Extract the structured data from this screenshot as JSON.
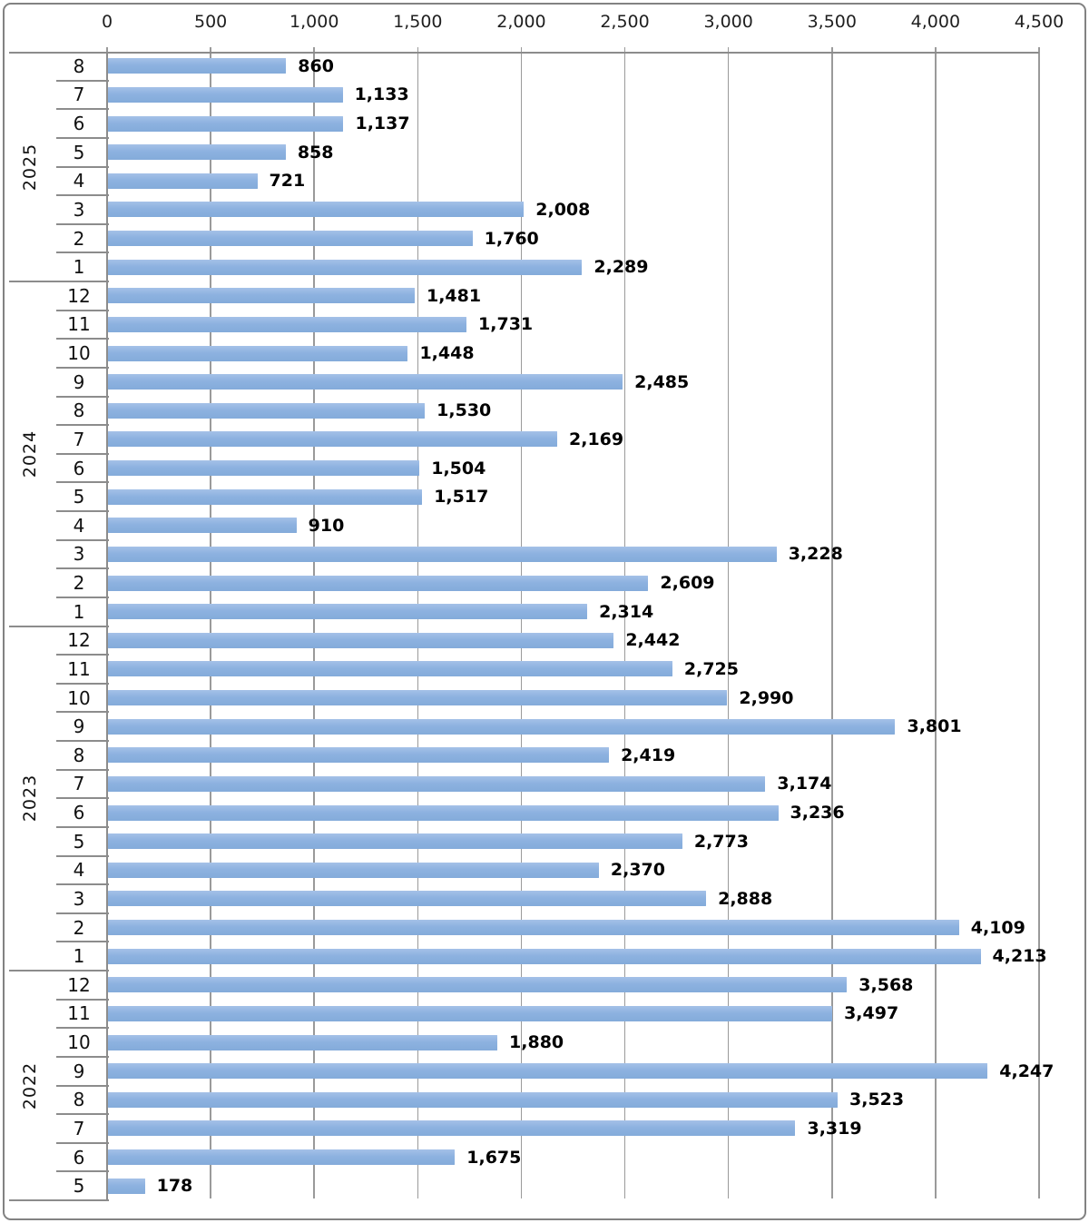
{
  "chart_data": {
    "type": "bar",
    "orientation": "horizontal",
    "title": "",
    "xlabel": "",
    "ylabel": "",
    "xlim": [
      0,
      4500
    ],
    "x_ticks": [
      0,
      500,
      1000,
      1500,
      2000,
      2500,
      3000,
      3500,
      4000,
      4500
    ],
    "x_tick_labels": [
      "0",
      "500",
      "1,000",
      "1,500",
      "2,000",
      "2,500",
      "3,000",
      "3,500",
      "4,000",
      "4,500"
    ],
    "grid": true,
    "legend": "none",
    "axis_position": "top",
    "colors": {
      "bar": "#8db2e0",
      "bar_light": "#a4c1e8",
      "bar_dark": "#84abda",
      "gridline": "#9a9a9a",
      "axis": "#8c8c8c",
      "frame_border": "#828282",
      "text": "#000000"
    },
    "groups": [
      {
        "year": "2025",
        "months": [
          "8",
          "7",
          "6",
          "5",
          "4",
          "3",
          "2",
          "1"
        ],
        "values": [
          860,
          1133,
          1137,
          858,
          721,
          2008,
          1760,
          2289
        ],
        "labels": [
          "860",
          "1,133",
          "1,137",
          "858",
          "721",
          "2,008",
          "1,760",
          "2,289"
        ]
      },
      {
        "year": "2024",
        "months": [
          "12",
          "11",
          "10",
          "9",
          "8",
          "7",
          "6",
          "5",
          "4",
          "3",
          "2",
          "1"
        ],
        "values": [
          1481,
          1731,
          1448,
          2485,
          1530,
          2169,
          1504,
          1517,
          910,
          3228,
          2609,
          2314
        ],
        "labels": [
          "1,481",
          "1,731",
          "1,448",
          "2,485",
          "1,530",
          "2,169",
          "1,504",
          "1,517",
          "910",
          "3,228",
          "2,609",
          "2,314"
        ]
      },
      {
        "year": "2023",
        "months": [
          "12",
          "11",
          "10",
          "9",
          "8",
          "7",
          "6",
          "5",
          "4",
          "3",
          "2",
          "1"
        ],
        "values": [
          2442,
          2725,
          2990,
          3801,
          2419,
          3174,
          3236,
          2773,
          2370,
          2888,
          4109,
          4213
        ],
        "labels": [
          "2,442",
          "2,725",
          "2,990",
          "3,801",
          "2,419",
          "3,174",
          "3,236",
          "2,773",
          "2,370",
          "2,888",
          "4,109",
          "4,213"
        ]
      },
      {
        "year": "2022",
        "months": [
          "12",
          "11",
          "10",
          "9",
          "8",
          "7",
          "6",
          "5"
        ],
        "values": [
          3568,
          3497,
          1880,
          4247,
          3523,
          3319,
          1675,
          178
        ],
        "labels": [
          "3,568",
          "3,497",
          "1,880",
          "4,247",
          "3,523",
          "3,319",
          "1,675",
          "178"
        ]
      }
    ]
  }
}
